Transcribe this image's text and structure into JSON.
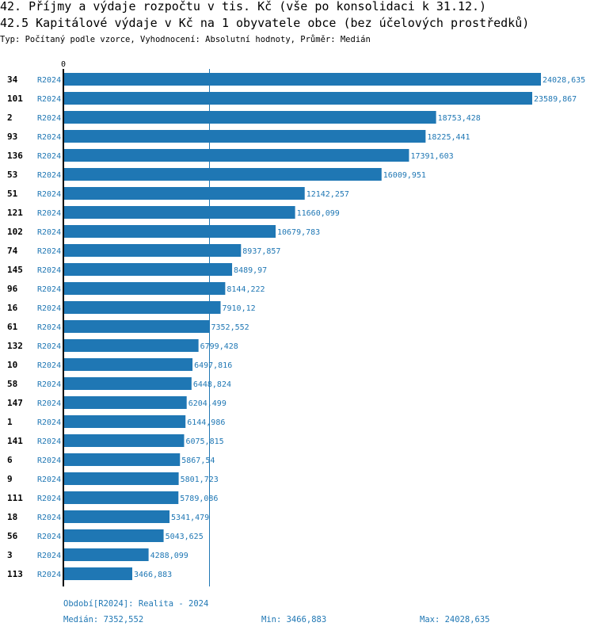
{
  "header": {
    "title_line1": "42. Příjmy a výdaje rozpočtu v tis. Kč (vše po konsolidaci k 31.12.)",
    "title_line2": "42.5 Kapitálové výdaje v Kč na 1 obyvatele obce (bez účelových prostředků)",
    "subtitle": "Typ: Počítaný podle vzorce, Vyhodnocení: Absolutní hodnoty, Průměr: Medián"
  },
  "chart_data": {
    "type": "bar",
    "orientation": "horizontal",
    "x_zero_label": "0",
    "series_label": "R2024",
    "categories": [
      "34",
      "101",
      "2",
      "93",
      "136",
      "53",
      "51",
      "121",
      "102",
      "74",
      "145",
      "96",
      "16",
      "61",
      "132",
      "10",
      "58",
      "147",
      "1",
      "141",
      "6",
      "9",
      "111",
      "18",
      "56",
      "3",
      "113"
    ],
    "values": [
      24028.635,
      23589.867,
      18753.428,
      18225.441,
      17391.603,
      16009.951,
      12142.257,
      11660.099,
      10679.783,
      8937.857,
      8489.97,
      8144.222,
      7910.12,
      7352.552,
      6799.428,
      6497.816,
      6448.824,
      6204.499,
      6144.986,
      6075.815,
      5867.54,
      5801.723,
      5789.086,
      5341.479,
      5043.625,
      4288.099,
      3466.883
    ],
    "value_labels": [
      "24028,635",
      "23589,867",
      "18753,428",
      "18225,441",
      "17391,603",
      "16009,951",
      "12142,257",
      "11660,099",
      "10679,783",
      "8937,857",
      "8489,97",
      "8144,222",
      "7910,12",
      "7352,552",
      "6799,428",
      "6497,816",
      "6448,824",
      "6204,499",
      "6144,986",
      "6075,815",
      "5867,54",
      "5801,723",
      "5789,086",
      "5341,479",
      "5043,625",
      "4288,099",
      "3466,883"
    ],
    "median": 7352.552,
    "bar_color": "#1f77b4",
    "median_line_color": "#1f77b4"
  },
  "footer": {
    "period": "Období[R2024]: Realita - 2024",
    "median": "Medián: 7352,552",
    "min": "Min: 3466,883",
    "max": "Max: 24028,635"
  }
}
